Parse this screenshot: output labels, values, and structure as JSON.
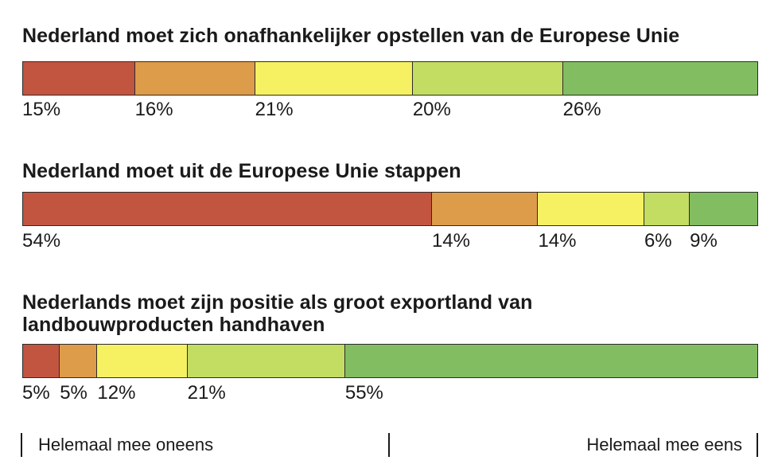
{
  "chart_data": [
    {
      "type": "bar",
      "stacked": true,
      "orientation": "horizontal",
      "title": "Nederland moet zich onafhankelijker opstellen van de Europese Unie",
      "values": [
        15,
        16,
        21,
        20,
        26
      ],
      "labels": [
        "15%",
        "16%",
        "21%",
        "20%",
        "26%"
      ],
      "colors": [
        "#C25540",
        "#DD9C49",
        "#F5F162",
        "#C3DC62",
        "#83BD62"
      ]
    },
    {
      "type": "bar",
      "stacked": true,
      "orientation": "horizontal",
      "title": "Nederland moet uit de Europese Unie stappen",
      "values": [
        54,
        14,
        14,
        6,
        9
      ],
      "labels": [
        "54%",
        "14%",
        "14%",
        "6%",
        "9%"
      ],
      "colors": [
        "#C25540",
        "#DD9C49",
        "#F5F162",
        "#C3DC62",
        "#83BD62"
      ]
    },
    {
      "type": "bar",
      "stacked": true,
      "orientation": "horizontal",
      "title": "Nederlands moet zijn positie als groot exportland van landbouwproducten handhaven",
      "values": [
        5,
        5,
        12,
        21,
        55
      ],
      "labels": [
        "5%",
        "5%",
        "12%",
        "21%",
        "55%"
      ],
      "colors": [
        "#C25540",
        "#DD9C49",
        "#F5F162",
        "#C3DC62",
        "#83BD62"
      ]
    }
  ],
  "scale": {
    "left_label": "Helemaal mee oneens",
    "right_label": "Helemaal mee eens"
  },
  "style": {
    "segment_border": "#2B2B2B",
    "text_color": "#1A1A1A",
    "background": "#FFFFFF"
  }
}
